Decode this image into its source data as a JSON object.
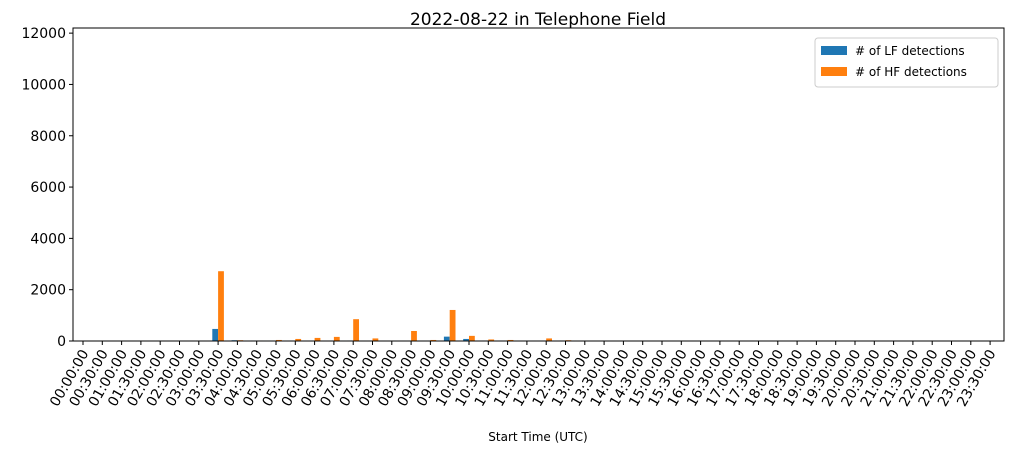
{
  "chart_data": {
    "type": "bar",
    "title": "2022-08-22 in Telephone Field",
    "xlabel": "Start Time (UTC)",
    "ylabel": "",
    "ylim": [
      0,
      12200
    ],
    "yticks": [
      0,
      2000,
      4000,
      6000,
      8000,
      10000,
      12000
    ],
    "grid": false,
    "legend_position": "top-right",
    "categories": [
      "00:00:00",
      "00:30:00",
      "01:00:00",
      "01:30:00",
      "02:00:00",
      "02:30:00",
      "03:00:00",
      "03:30:00",
      "04:00:00",
      "04:30:00",
      "05:00:00",
      "05:30:00",
      "06:00:00",
      "06:30:00",
      "07:00:00",
      "07:30:00",
      "08:00:00",
      "08:30:00",
      "09:00:00",
      "09:30:00",
      "10:00:00",
      "10:30:00",
      "11:00:00",
      "11:30:00",
      "12:00:00",
      "12:30:00",
      "13:00:00",
      "13:30:00",
      "14:00:00",
      "14:30:00",
      "15:00:00",
      "15:30:00",
      "16:00:00",
      "16:30:00",
      "17:00:00",
      "17:30:00",
      "18:00:00",
      "18:30:00",
      "19:00:00",
      "19:30:00",
      "20:00:00",
      "20:30:00",
      "21:00:00",
      "21:30:00",
      "22:00:00",
      "22:30:00",
      "23:00:00",
      "23:30:00"
    ],
    "series": [
      {
        "name": "# of LF detections",
        "color": "#1f77b4",
        "values": [
          0,
          0,
          0,
          0,
          0,
          0,
          0,
          470,
          30,
          20,
          10,
          5,
          10,
          10,
          20,
          10,
          5,
          10,
          10,
          170,
          80,
          20,
          10,
          5,
          10,
          20,
          0,
          0,
          0,
          0,
          0,
          0,
          0,
          0,
          0,
          0,
          0,
          0,
          0,
          0,
          0,
          0,
          0,
          0,
          0,
          0,
          0,
          0
        ]
      },
      {
        "name": "# of HF detections",
        "color": "#ff7f0e",
        "values": [
          0,
          0,
          0,
          0,
          0,
          0,
          0,
          2720,
          30,
          20,
          40,
          80,
          120,
          160,
          850,
          100,
          10,
          390,
          40,
          1210,
          200,
          60,
          40,
          10,
          100,
          30,
          0,
          0,
          0,
          0,
          0,
          0,
          0,
          0,
          0,
          0,
          0,
          0,
          0,
          0,
          0,
          0,
          0,
          0,
          0,
          0,
          0,
          0
        ]
      }
    ]
  }
}
